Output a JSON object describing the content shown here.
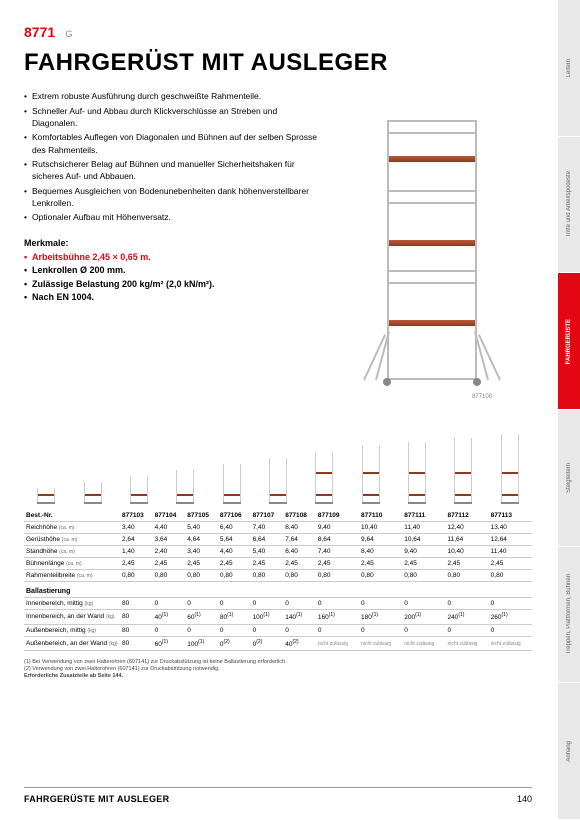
{
  "header": {
    "code": "8771",
    "grade": "G"
  },
  "title": "FAHRGERÜST MIT AUSLEGER",
  "bullets": [
    "Extrem robuste Ausführung durch geschweißte Rahmenteile.",
    "Schneller Auf- und Abbau durch Klickverschlüsse an Streben und Diagonalen.",
    "Komfortables Auflegen von Diagonalen und Bühnen auf der selben Sprosse des Rahmenteils.",
    "Rutschsicherer Belag auf Bühnen und manueller Sicherheitshaken für sicheres Auf- und Abbauen.",
    "Bequemes Ausgleichen von Bodenunebenheiten dank höhenverstellbarer Lenkrollen.",
    "Optionaler Aufbau mit Höhenversatz."
  ],
  "merk_h": "Merkmale:",
  "merk": [
    {
      "t": "Arbeitsbühne 2,45 × 0,65 m.",
      "red": true
    },
    {
      "t": "Lenkrollen Ø 200 mm.",
      "red": false
    },
    {
      "t": "Zulässige Belastung 200 kg/m² (2,0 kN/m²).",
      "red": false
    },
    {
      "t": "Nach EN 1004.",
      "red": false
    }
  ],
  "caption": "877108",
  "table": {
    "cols": [
      "877103",
      "877104",
      "877105",
      "877106",
      "877107",
      "877108",
      "877109",
      "877110",
      "877111",
      "877112",
      "877113"
    ],
    "rows": [
      {
        "h": "Best.-Nr.",
        "sub": "",
        "v": [
          "877103",
          "877104",
          "877105",
          "877106",
          "877107",
          "877108",
          "877109",
          "877110",
          "877111",
          "877112",
          "877113"
        ],
        "bold": true
      },
      {
        "h": "Reichhöhe",
        "sub": "(ca. m)",
        "v": [
          "3,40",
          "4,40",
          "5,40",
          "6,40",
          "7,40",
          "8,40",
          "9,40",
          "10,40",
          "11,40",
          "12,40",
          "13,40"
        ]
      },
      {
        "h": "Gerüsthöhe",
        "sub": "(ca. m)",
        "v": [
          "2,64",
          "3,64",
          "4,64",
          "5,64",
          "6,64",
          "7,64",
          "8,64",
          "9,64",
          "10,64",
          "11,64",
          "12,64"
        ]
      },
      {
        "h": "Standhöhe",
        "sub": "(ca. m)",
        "v": [
          "1,40",
          "2,40",
          "3,40",
          "4,40",
          "5,40",
          "6,40",
          "7,40",
          "8,40",
          "9,40",
          "10,40",
          "11,40"
        ]
      },
      {
        "h": "Bühnenlänge",
        "sub": "(ca. m)",
        "v": [
          "2,45",
          "2,45",
          "2,45",
          "2,45",
          "2,45",
          "2,45",
          "2,45",
          "2,45",
          "2,45",
          "2,45",
          "2,45"
        ]
      },
      {
        "h": "Rahmenteilbreite",
        "sub": "(ca. m)",
        "v": [
          "0,80",
          "0,80",
          "0,80",
          "0,80",
          "0,80",
          "0,80",
          "0,80",
          "0,80",
          "0,80",
          "0,80",
          "0,80"
        ]
      }
    ],
    "ballast_h": "Ballastierung",
    "ballast": [
      {
        "h": "Innenbereich, mittig",
        "sub": "(kg)",
        "v": [
          "80",
          "0",
          "0",
          "0",
          "0",
          "0",
          "0",
          "0",
          "0",
          "0",
          "0"
        ]
      },
      {
        "h": "Innenbereich, an der Wand",
        "sub": "(kg)",
        "v": [
          "80",
          "40",
          "60",
          "80",
          "100",
          "140",
          "160",
          "180",
          "200",
          "240",
          "260"
        ],
        "sup": [
          "",
          "(1)",
          "(1)",
          "(1)",
          "(1)",
          "(1)",
          "(1)",
          "(1)",
          "(1)",
          "(1)",
          "(1)"
        ]
      },
      {
        "h": "Außenbereich, mittig",
        "sub": "(kg)",
        "v": [
          "80",
          "0",
          "0",
          "0",
          "0",
          "0",
          "0",
          "0",
          "0",
          "0",
          "0"
        ]
      },
      {
        "h": "Außenbereich, an der Wand",
        "sub": "(kg)",
        "v": [
          "80",
          "60",
          "100",
          "0",
          "0",
          "40",
          "nicht zulässig",
          "nicht zulässig",
          "nicht zulässig",
          "nicht zulässig",
          "nicht zulässig"
        ],
        "sup": [
          "",
          "(1)",
          "(1)",
          "(2)",
          "(2)",
          "(2)",
          "",
          "",
          "",
          "",
          ""
        ]
      }
    ]
  },
  "thumb_heights": [
    16,
    22,
    28,
    34,
    40,
    46,
    52,
    58,
    62,
    66,
    70
  ],
  "notes": [
    "(1) Bei Verwendung von zwei Halterohren (607141) zur Druckabstützung ist keine Ballastierung erforderlich.",
    "(2) Verwendung von zwei Halterohren (607141) zur Druckabstützung notwendig."
  ],
  "notes_bold": "Erforderliche Zusatzteile ab Seite 144.",
  "footer": {
    "l": "FAHRGERÜSTE MIT AUSLEGER",
    "r": "140"
  },
  "tabs": [
    "Leitern",
    "Tritte und Arbeitspodeste",
    "FAHRGERÜSTE",
    "Steigleitern",
    "Treppen, Plattformen, Bühnen",
    "Anhang"
  ],
  "active_tab": 2,
  "colors": {
    "red": "#e30613",
    "plat": "#8b3a1f"
  }
}
